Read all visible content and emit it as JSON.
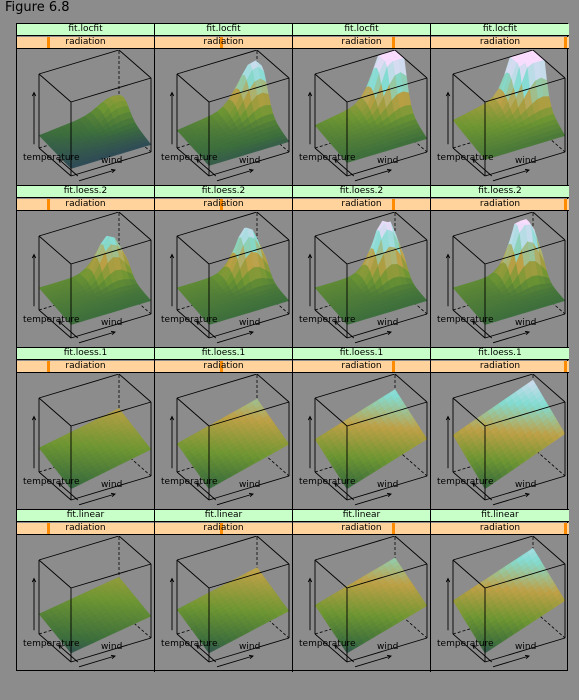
{
  "figure_title": "Figure 6.8",
  "chart_data": {
    "type": "surface3d",
    "x_label": "temperature",
    "y_label": "wind",
    "shingle_label": "radiation",
    "rows": [
      {
        "fit": "fit.locfit",
        "shape": "locfit"
      },
      {
        "fit": "fit.loess.2",
        "shape": "loess2"
      },
      {
        "fit": "fit.loess.1",
        "shape": "loess1"
      },
      {
        "fit": "fit.linear",
        "shape": "linear"
      }
    ],
    "columns": [
      {
        "radiation_level": 1,
        "level_of": 4
      },
      {
        "radiation_level": 2,
        "level_of": 4
      },
      {
        "radiation_level": 3,
        "level_of": 4
      },
      {
        "radiation_level": 4,
        "level_of": 4
      }
    ],
    "colors": {
      "background": "#8c8c8c",
      "strip_fit": "#c8ffc8",
      "strip_radiation": "#ffd39b",
      "shingle_marker": "#ff8c00"
    }
  }
}
